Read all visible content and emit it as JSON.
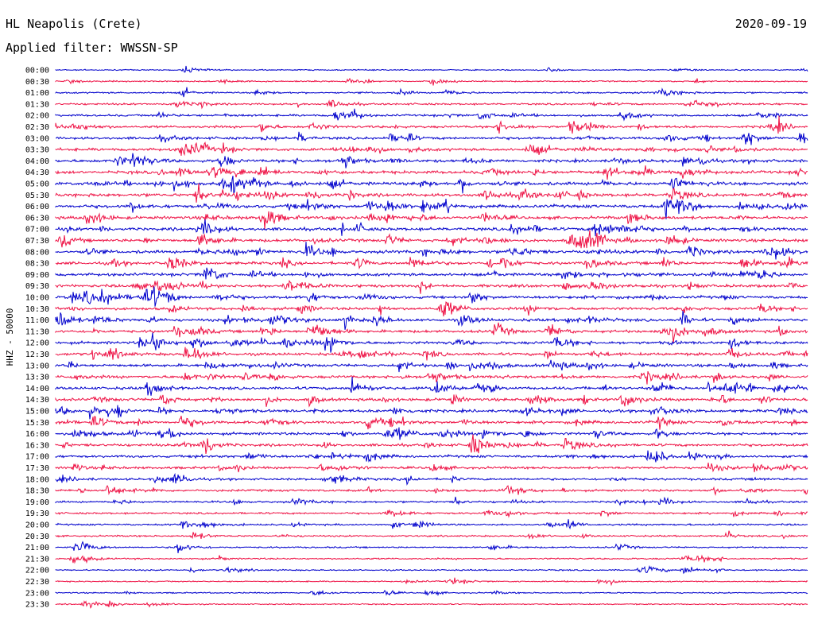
{
  "header": {
    "station": "HL Neapolis (Crete)",
    "date": "2020-09-19",
    "filter": "Applied filter: WWSSN-SP"
  },
  "chart_data": {
    "type": "line",
    "title": "HL Neapolis (Crete)",
    "subtitle": "Applied filter: WWSSN-SP",
    "ylabel": "HHZ - 50000",
    "date": "2020-09-19",
    "time_labels": [
      "00:00",
      "00:30",
      "01:00",
      "01:30",
      "02:00",
      "02:30",
      "03:00",
      "03:30",
      "04:00",
      "04:30",
      "05:00",
      "05:30",
      "06:00",
      "06:30",
      "07:00",
      "07:30",
      "08:00",
      "08:30",
      "09:00",
      "09:30",
      "10:00",
      "10:30",
      "11:00",
      "11:30",
      "12:00",
      "12:30",
      "13:00",
      "13:30",
      "14:00",
      "14:30",
      "15:00",
      "15:30",
      "16:00",
      "16:30",
      "17:00",
      "17:30",
      "18:00",
      "18:30",
      "19:00",
      "19:30",
      "20:00",
      "20:30",
      "21:00",
      "21:30",
      "22:00",
      "22:30",
      "23:00",
      "23:30"
    ],
    "colors": [
      "#0000cc",
      "#ee1144"
    ],
    "activity": [
      0.15,
      0.25,
      0.35,
      0.45,
      0.55,
      0.65,
      0.75,
      0.85,
      0.9,
      0.95,
      1.0,
      1.0,
      1.0,
      0.95,
      0.95,
      0.95,
      0.95,
      0.9,
      0.9,
      0.85,
      0.85,
      0.8,
      0.85,
      0.85,
      0.85,
      0.85,
      0.85,
      0.85,
      0.85,
      0.85,
      0.85,
      0.8,
      0.8,
      0.75,
      0.7,
      0.65,
      0.6,
      0.55,
      0.5,
      0.45,
      0.4,
      0.35,
      0.3,
      0.3,
      0.25,
      0.2,
      0.2,
      0.15
    ]
  }
}
